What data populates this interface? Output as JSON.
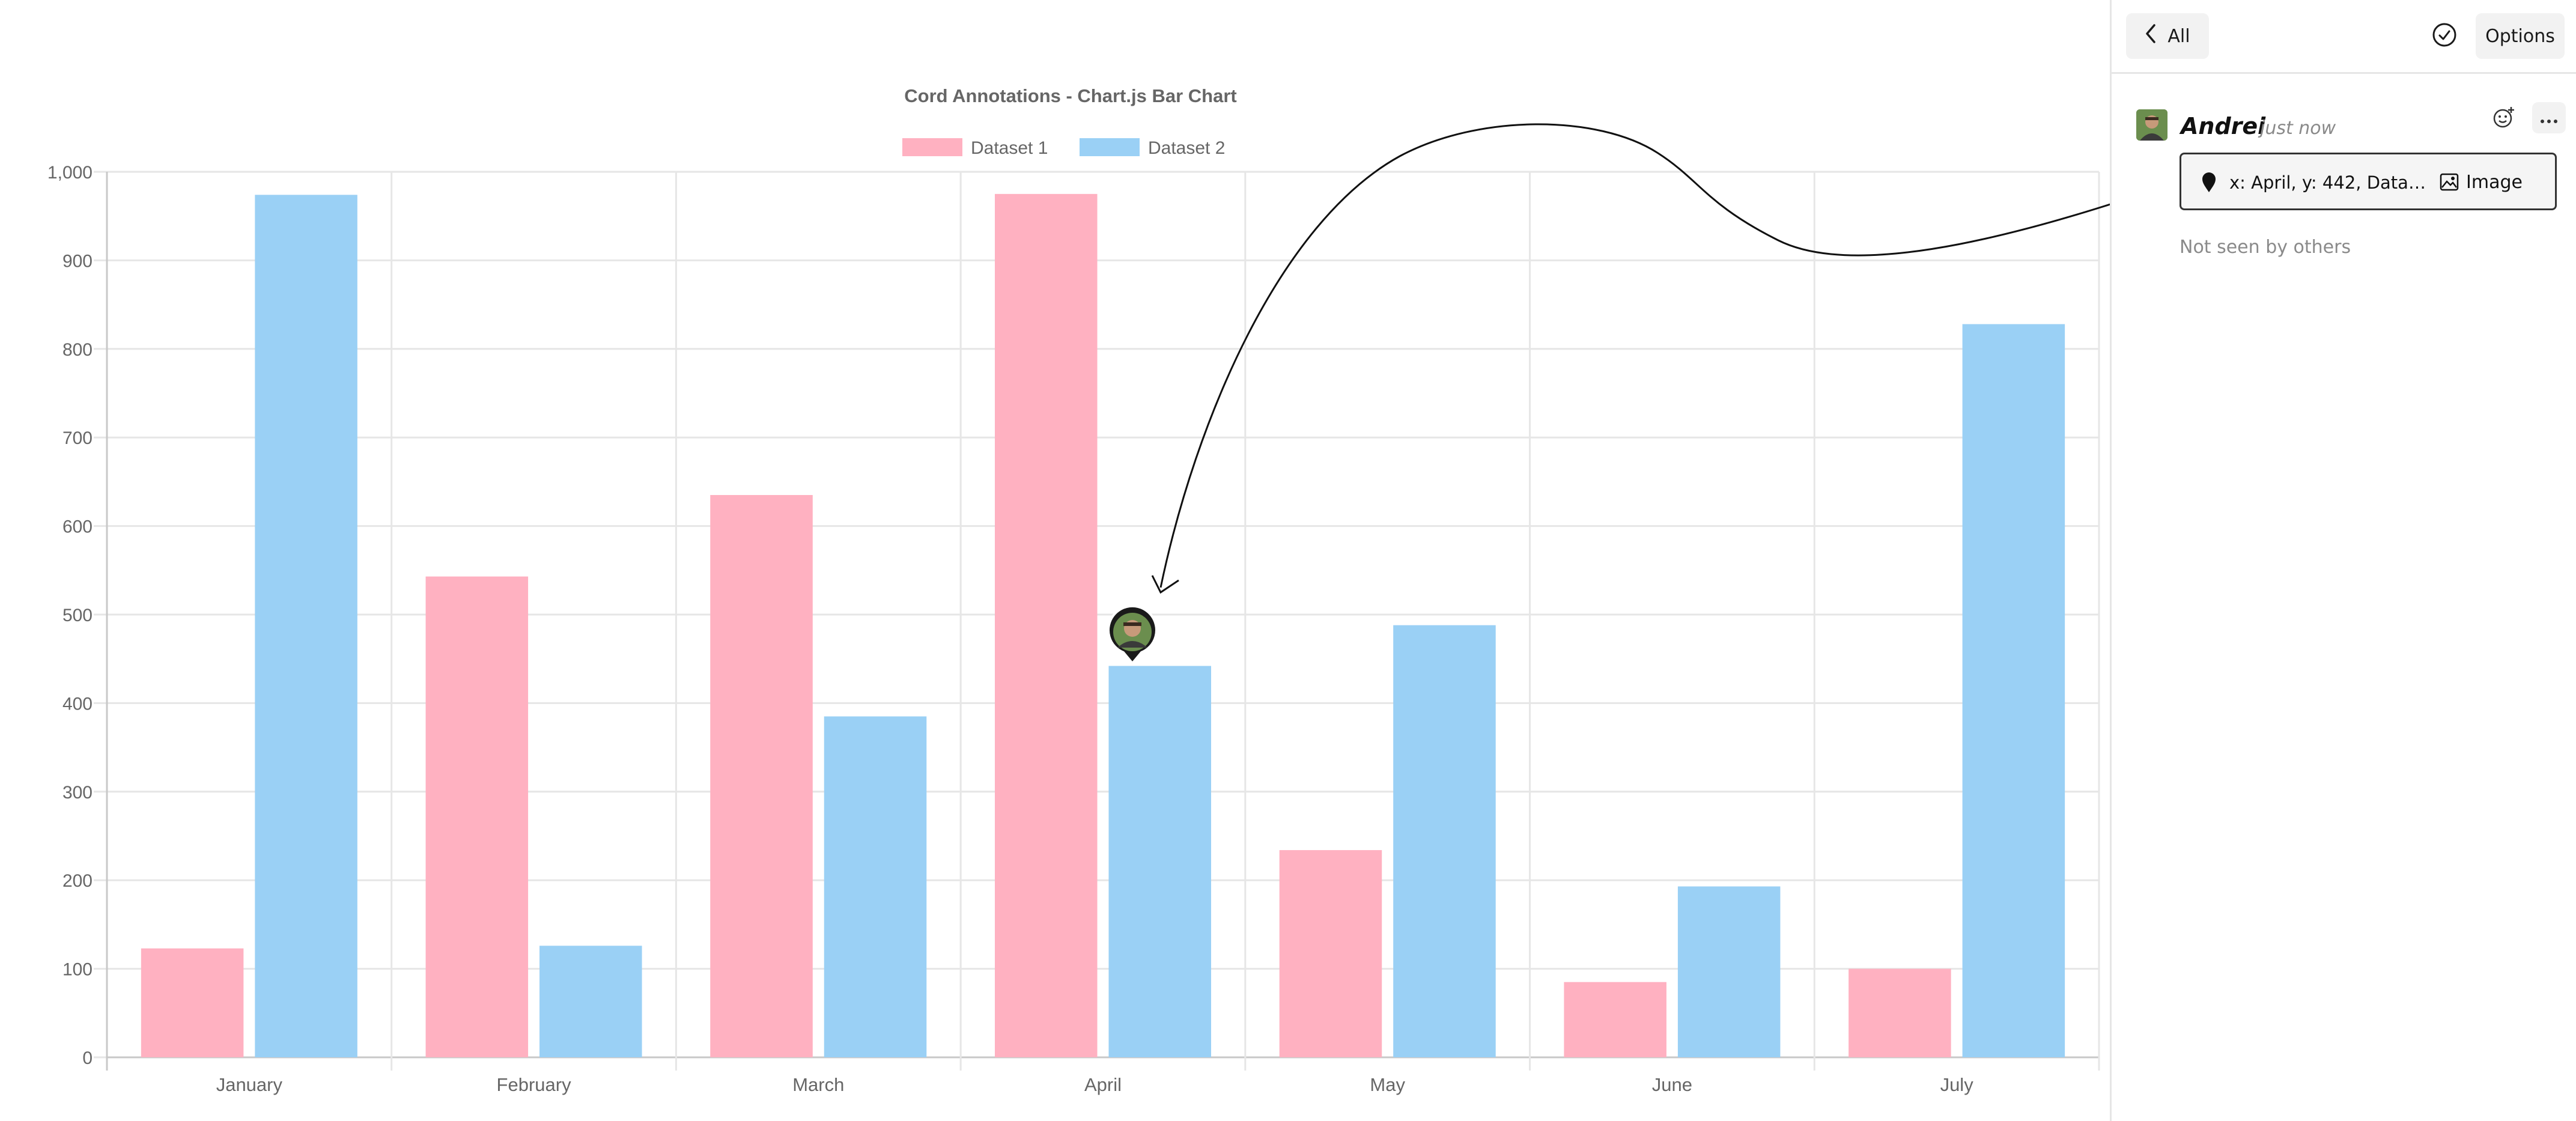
{
  "chart_data": {
    "type": "bar",
    "title": "Cord Annotations - Chart.js Bar Chart",
    "categories": [
      "January",
      "February",
      "March",
      "April",
      "May",
      "June",
      "July"
    ],
    "series": [
      {
        "name": "Dataset 1",
        "color": "#ffb1c1",
        "values": [
          123,
          543,
          635,
          975,
          234,
          85,
          100
        ]
      },
      {
        "name": "Dataset 2",
        "color": "#9ad0f5",
        "values": [
          974,
          126,
          385,
          442,
          488,
          193,
          828
        ]
      }
    ],
    "ylim": [
      0,
      1000
    ],
    "yticks": [
      "0",
      "100",
      "200",
      "300",
      "400",
      "500",
      "600",
      "700",
      "800",
      "900",
      "1,000"
    ],
    "grid": true,
    "legend": "top"
  },
  "annotation_pin": {
    "category": "April",
    "series": "Dataset 2",
    "value": 442
  },
  "sidebar": {
    "back_label": "All",
    "options_label": "Options",
    "icons": {
      "back": "chevron-left-icon",
      "resolve": "check-circle-icon",
      "emoji": "add-reaction-icon",
      "more": "more-dots-icon",
      "pin": "location-pin-icon",
      "image": "image-icon"
    },
    "message": {
      "author": "Andrei",
      "time": "just now",
      "annotation_text": "x: April, y: 442, Datas...",
      "image_label": "Image",
      "seen_status": "Not seen by others"
    }
  }
}
